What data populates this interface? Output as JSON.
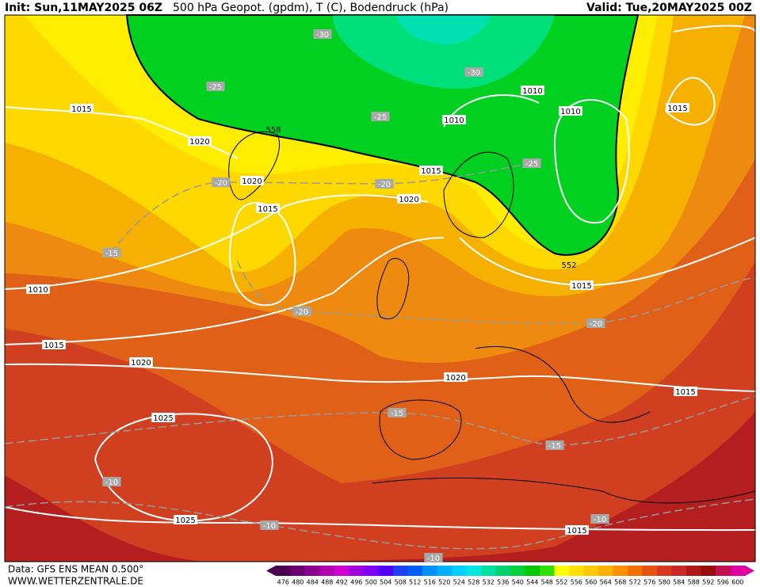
{
  "header": {
    "init": "Init: Sun,11MAY2025 06Z",
    "title": "500 hPa Geopot. (gpdm), T (C), Bodendruck (hPa)",
    "valid": "Valid: Tue,20MAY2025 00Z"
  },
  "footer": {
    "data": "Data: GFS ENS MEAN 0.500°",
    "site": "WWW.WETTERZENTRALE.DE"
  },
  "colorbar": {
    "labels": [
      "476",
      "480",
      "484",
      "488",
      "492",
      "496",
      "500",
      "504",
      "508",
      "512",
      "516",
      "520",
      "524",
      "528",
      "532",
      "536",
      "540",
      "544",
      "548",
      "552",
      "556",
      "560",
      "564",
      "568",
      "572",
      "576",
      "580",
      "584",
      "588",
      "592",
      "596",
      "600"
    ],
    "colors": [
      "#4b0050",
      "#6a0070",
      "#8c0090",
      "#b000b0",
      "#d000d0",
      "#a000e0",
      "#8000ff",
      "#5000ff",
      "#2040ff",
      "#0060ff",
      "#0090ff",
      "#00b0ff",
      "#00d0ff",
      "#00e8e0",
      "#00e0a0",
      "#00d070",
      "#00d040",
      "#00c800",
      "#30e000",
      "#ffff00",
      "#ffe000",
      "#ffc800",
      "#ffb000",
      "#f89000",
      "#f07000",
      "#e85010",
      "#d83820",
      "#c82828",
      "#b01818",
      "#980c10",
      "#c01050",
      "#e000a0"
    ]
  },
  "isobar_labels": [
    "1015",
    "1020",
    "1020",
    "1015",
    "1010",
    "1015",
    "1020",
    "1025",
    "1025",
    "1020",
    "1015",
    "1015",
    "1015",
    "1010",
    "1010",
    "1010",
    "1015",
    "1015",
    "1020"
  ],
  "temperature_labels": [
    "-30",
    "-30",
    "-25",
    "-25",
    "-25",
    "-20",
    "-20",
    "-15",
    "-20",
    "-20",
    "-15",
    "-15",
    "-10",
    "-10",
    "-10",
    "-10"
  ],
  "geopotential_labels": [
    "558",
    "552"
  ]
}
